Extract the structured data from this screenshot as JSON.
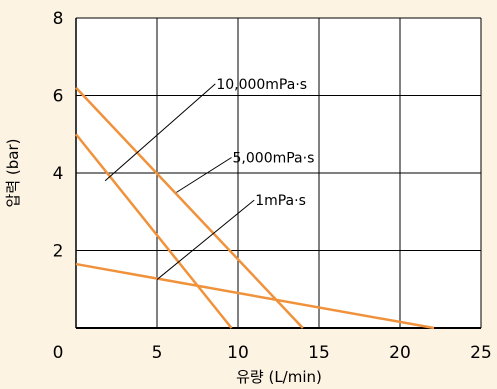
{
  "colors": {
    "background": "#fdf3e3",
    "plot_background": "#ffffff",
    "grid": "#000000",
    "series_line": "#f0923b",
    "annotation": "#000000"
  },
  "chart_data": {
    "type": "line",
    "title": "",
    "xlabel": "유량 (L/min)",
    "ylabel": "압력 (bar)",
    "xlim": [
      0,
      25
    ],
    "ylim": [
      0,
      8
    ],
    "x_ticks": [
      0,
      5,
      10,
      15,
      20,
      25
    ],
    "y_ticks": [
      2,
      4,
      6,
      8
    ],
    "x_tick_labels": [
      "0",
      "5",
      "10",
      "15",
      "20",
      "25"
    ],
    "y_tick_labels": [
      "2",
      "4",
      "6",
      "8"
    ],
    "grid": true,
    "legend": "none",
    "series": [
      {
        "name": "10,000mPa·s",
        "x": [
          0,
          14
        ],
        "y": [
          6.2,
          0
        ],
        "label_x": 8.6,
        "label_y": 6.3,
        "pointer_x": 1.8,
        "pointer_y": 3.8
      },
      {
        "name": "5,000mPa·s",
        "x": [
          0,
          9.6
        ],
        "y": [
          5,
          0
        ],
        "label_x": 9.6,
        "label_y": 4.4,
        "pointer_x": 6.2,
        "pointer_y": 3.5
      },
      {
        "name": "1mPa·s",
        "x": [
          0,
          22.1
        ],
        "y": [
          1.65,
          0
        ],
        "label_x": 11,
        "label_y": 3.3,
        "pointer_x": 5,
        "pointer_y": 1.25
      }
    ]
  }
}
